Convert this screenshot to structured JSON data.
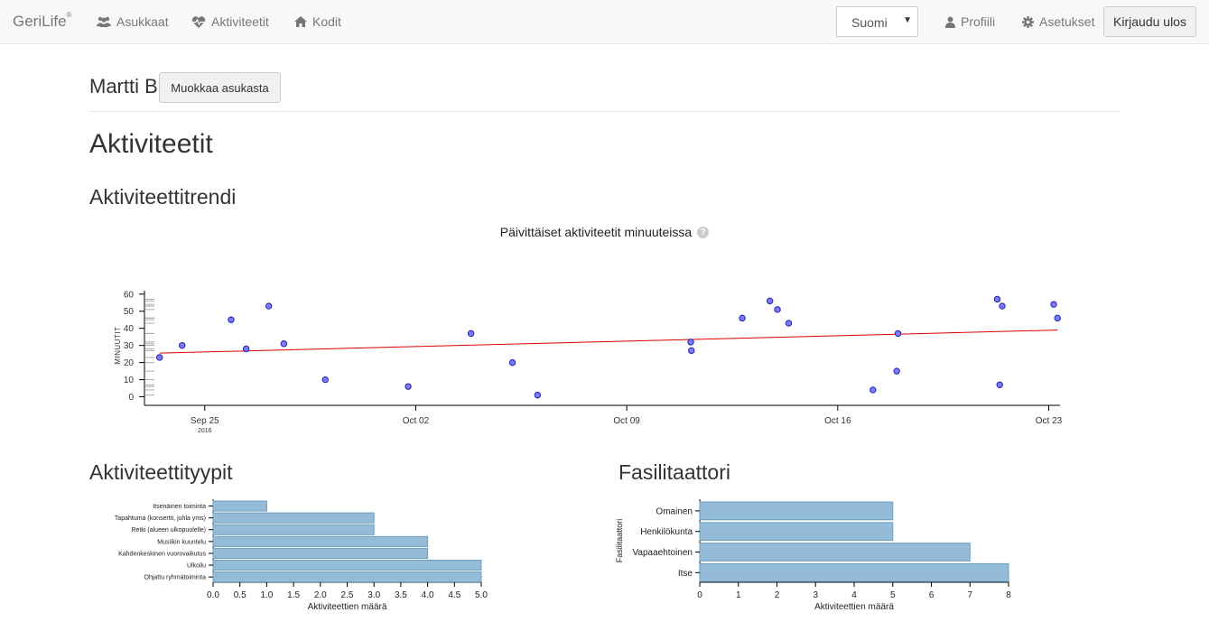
{
  "navbar": {
    "brand": "GeriLife",
    "brand_mark": "®",
    "residents": "Asukkaat",
    "activities": "Aktiviteetit",
    "homes": "Kodit",
    "language": "Suomi",
    "profile": "Profiili",
    "settings": "Asetukset",
    "logout": "Kirjaudu ulos"
  },
  "resident": {
    "name": "Martti B",
    "edit_label": "Muokkaa asukasta"
  },
  "page": {
    "title": "Aktiviteetit",
    "trend_heading": "Aktiviteettitrendi",
    "trend_chart_title": "Päivittäiset aktiviteetit minuuteissa",
    "types_heading": "Aktiviteettityypit",
    "facilitator_heading": "Fasilitaattori"
  },
  "colors": {
    "point_fill": "#7b7bff",
    "point_stroke": "#2222aa",
    "trend_line": "#e00000",
    "bar_fill": "#94bcd9",
    "bar_stroke": "#6f9dbf"
  },
  "chart_data": [
    {
      "type": "scatter",
      "title": "Päivittäiset aktiviteetit minuuteissa",
      "ylabel": "MINUUTIT",
      "xlabel": "",
      "ylim": [
        -5,
        62
      ],
      "y_ticks": [
        0,
        10,
        20,
        30,
        40,
        50,
        60
      ],
      "x_ticks": [
        {
          "date": "2016-09-25",
          "label": "Sep 25",
          "sub": "2016"
        },
        {
          "date": "2016-10-02",
          "label": "Oct 02",
          "sub": ""
        },
        {
          "date": "2016-10-09",
          "label": "Oct 09",
          "sub": ""
        },
        {
          "date": "2016-10-16",
          "label": "Oct 16",
          "sub": ""
        },
        {
          "date": "2016-10-23",
          "label": "Oct 23",
          "sub": ""
        }
      ],
      "xlim": [
        "2016-09-23T00:00",
        "2016-10-23T09:00"
      ],
      "points": [
        {
          "x": "2016-09-23T12:00",
          "y": 23
        },
        {
          "x": "2016-09-24T06:00",
          "y": 30
        },
        {
          "x": "2016-09-25T21:00",
          "y": 45
        },
        {
          "x": "2016-09-26T09:00",
          "y": 28
        },
        {
          "x": "2016-09-27T03:00",
          "y": 53
        },
        {
          "x": "2016-09-27T15:00",
          "y": 31
        },
        {
          "x": "2016-09-29T00:00",
          "y": 10
        },
        {
          "x": "2016-10-01T18:00",
          "y": 6
        },
        {
          "x": "2016-10-03T20:00",
          "y": 37
        },
        {
          "x": "2016-10-05T05:00",
          "y": 20
        },
        {
          "x": "2016-10-06T01:00",
          "y": 1
        },
        {
          "x": "2016-10-11T03:00",
          "y": 32
        },
        {
          "x": "2016-10-11T03:30",
          "y": 27
        },
        {
          "x": "2016-10-12T20:00",
          "y": 46
        },
        {
          "x": "2016-10-13T18:00",
          "y": 56
        },
        {
          "x": "2016-10-14T00:00",
          "y": 51
        },
        {
          "x": "2016-10-14T09:00",
          "y": 43
        },
        {
          "x": "2016-10-17T04:00",
          "y": 4
        },
        {
          "x": "2016-10-17T23:00",
          "y": 15
        },
        {
          "x": "2016-10-18T00:00",
          "y": 37
        },
        {
          "x": "2016-10-21T07:00",
          "y": 57
        },
        {
          "x": "2016-10-21T09:00",
          "y": 7
        },
        {
          "x": "2016-10-21T11:00",
          "y": 53
        },
        {
          "x": "2016-10-23T04:00",
          "y": 54
        },
        {
          "x": "2016-10-23T07:00",
          "y": 46
        }
      ],
      "trend": [
        {
          "x": "2016-09-23T12:00",
          "y": 25.5
        },
        {
          "x": "2016-10-23T07:00",
          "y": 39
        }
      ]
    },
    {
      "type": "bar",
      "orientation": "horizontal",
      "title": "",
      "xlabel": "Aktiviteettien määrä",
      "ylabel": "",
      "xlim": [
        0,
        5
      ],
      "x_ticks": [
        "0.0",
        "0.5",
        "1.0",
        "1.5",
        "2.0",
        "2.5",
        "3.0",
        "3.5",
        "4.0",
        "4.5",
        "5.0"
      ],
      "categories": [
        "Itsenäinen toiminta",
        "Tapahtuma (konsertti, juhla yms)",
        "Retki (alueen ulkopuolelle)",
        "Musiikin kuuntelu",
        "Kahdenkeskinen vuorovaikutus",
        "Ulkoilu",
        "Ohjattu ryhmätoiminta"
      ],
      "values": [
        1,
        3,
        3,
        4,
        4,
        5,
        5
      ]
    },
    {
      "type": "bar",
      "orientation": "horizontal",
      "title": "",
      "xlabel": "Aktiviteettien määrä",
      "ylabel": "Fasilitaattori",
      "xlim": [
        0,
        8
      ],
      "x_ticks": [
        "0",
        "1",
        "2",
        "3",
        "4",
        "5",
        "6",
        "7",
        "8"
      ],
      "categories": [
        "Omainen",
        "Henkilökunta",
        "Vapaaehtoinen",
        "Itse"
      ],
      "values": [
        5,
        5,
        7,
        8
      ]
    }
  ]
}
